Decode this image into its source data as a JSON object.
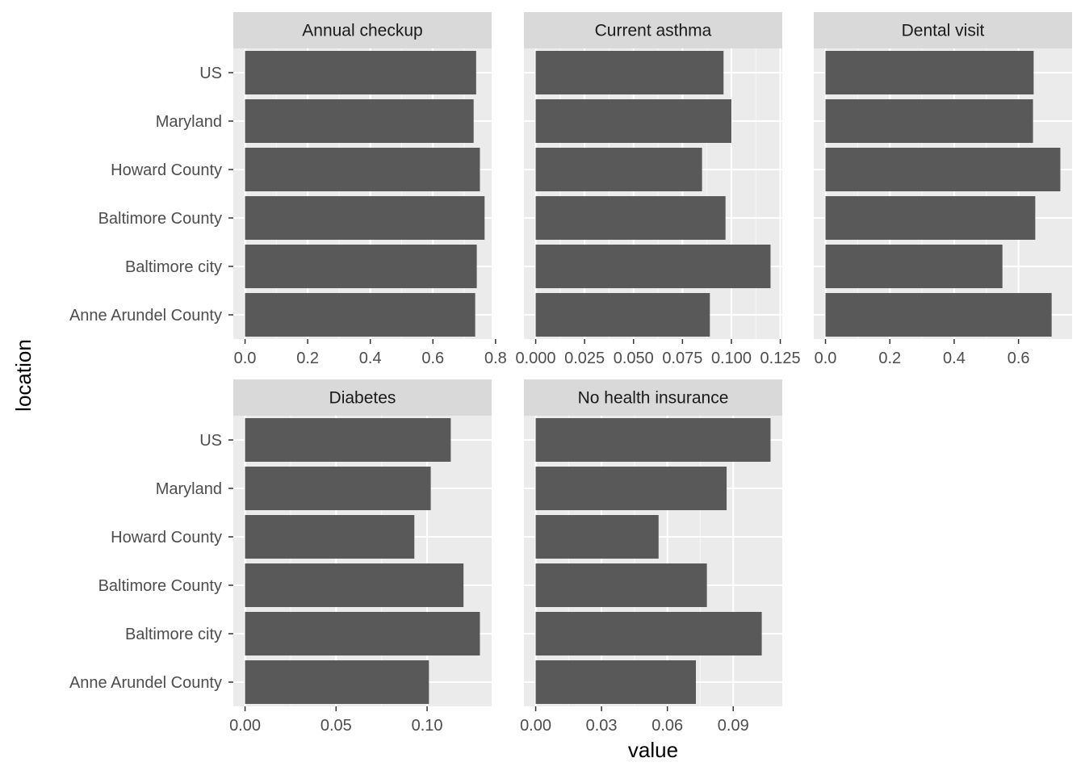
{
  "chart_data": {
    "type": "bar",
    "orientation": "horizontal",
    "faceted": true,
    "facet_columns": 3,
    "xlabel": "value",
    "ylabel": "location",
    "categories": [
      "Anne Arundel County",
      "Baltimore city",
      "Baltimore County",
      "Howard County",
      "Maryland",
      "US"
    ],
    "grid": true,
    "colors": {
      "bar": "#595959",
      "panel_background": "#ebebeb",
      "grid_major": "#ffffff",
      "strip_background": "#d9d9d9",
      "text": "#4d4d4d",
      "title_text": "#1a1a1a"
    },
    "panels": [
      {
        "title": "Annual checkup",
        "values": [
          0.735,
          0.74,
          0.765,
          0.75,
          0.73,
          0.738
        ],
        "xlim": [
          -0.0375,
          0.7875
        ],
        "ticks": [
          0.0,
          0.2,
          0.4,
          0.6,
          0.8
        ],
        "tick_labels": [
          "0.0",
          "0.2",
          "0.4",
          "0.6",
          "0.8"
        ]
      },
      {
        "title": "Current asthma",
        "values": [
          0.089,
          0.12,
          0.097,
          0.085,
          0.1,
          0.096
        ],
        "xlim": [
          -0.006,
          0.126
        ],
        "ticks": [
          0.0,
          0.025,
          0.05,
          0.075,
          0.1,
          0.125
        ],
        "tick_labels": [
          "0.000",
          "0.025",
          "0.050",
          "0.075",
          "0.100",
          "0.125"
        ]
      },
      {
        "title": "Dental visit",
        "values": [
          0.703,
          0.55,
          0.652,
          0.73,
          0.645,
          0.647
        ],
        "xlim": [
          -0.0365,
          0.7665
        ],
        "ticks": [
          0.0,
          0.2,
          0.4,
          0.6
        ],
        "tick_labels": [
          "0.0",
          "0.2",
          "0.4",
          "0.6"
        ]
      },
      {
        "title": "Diabetes",
        "values": [
          0.101,
          0.129,
          0.12,
          0.093,
          0.102,
          0.113
        ],
        "xlim": [
          -0.00645,
          0.13545
        ],
        "ticks": [
          0.0,
          0.05,
          0.1
        ],
        "tick_labels": [
          "0.00",
          "0.05",
          "0.10"
        ]
      },
      {
        "title": "No health insurance",
        "values": [
          0.073,
          0.103,
          0.078,
          0.056,
          0.087,
          0.107
        ],
        "xlim": [
          -0.00535,
          0.11235
        ],
        "ticks": [
          0.0,
          0.03,
          0.06,
          0.09
        ],
        "tick_labels": [
          "0.00",
          "0.03",
          "0.06",
          "0.09"
        ]
      }
    ]
  }
}
